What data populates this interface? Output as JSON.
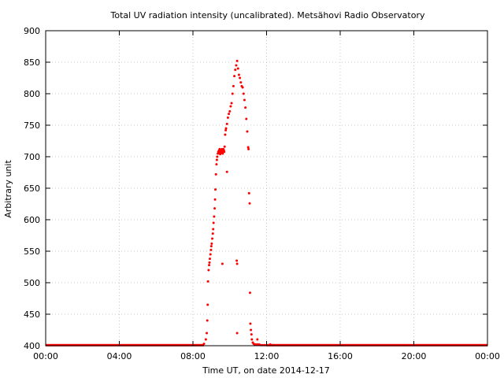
{
  "chart_data": {
    "type": "scatter",
    "title": "Total UV radiation intensity (uncalibrated). Metsähovi Radio Observatory",
    "xlabel": "Time UT, on date 2014-12-17",
    "ylabel": "Arbitrary unit",
    "xlim": [
      0,
      24
    ],
    "ylim": [
      400,
      900
    ],
    "x_ticks": [
      {
        "value": 0,
        "label": "00:00"
      },
      {
        "value": 4,
        "label": "04:00"
      },
      {
        "value": 8,
        "label": "08:00"
      },
      {
        "value": 12,
        "label": "12:00"
      },
      {
        "value": 16,
        "label": "16:00"
      },
      {
        "value": 20,
        "label": "20:00"
      },
      {
        "value": 24,
        "label": "00:00"
      }
    ],
    "y_ticks": [
      {
        "value": 400,
        "label": "400"
      },
      {
        "value": 450,
        "label": "450"
      },
      {
        "value": 500,
        "label": "500"
      },
      {
        "value": 550,
        "label": "550"
      },
      {
        "value": 600,
        "label": "600"
      },
      {
        "value": 650,
        "label": "650"
      },
      {
        "value": 700,
        "label": "700"
      },
      {
        "value": 750,
        "label": "750"
      },
      {
        "value": 800,
        "label": "800"
      },
      {
        "value": 850,
        "label": "850"
      },
      {
        "value": 900,
        "label": "900"
      }
    ],
    "grid": true,
    "point_color": "#ff0000",
    "series": [
      {
        "x": [
          8.7,
          8.75,
          8.78,
          8.8,
          8.82,
          8.85,
          8.88,
          8.9,
          8.92,
          8.95,
          8.98,
          9.0,
          9.02,
          9.05,
          9.08,
          9.1,
          9.12,
          9.15,
          9.18,
          9.2,
          9.22,
          9.25,
          9.28,
          9.3,
          9.32,
          9.35,
          9.38,
          9.4,
          9.42,
          9.45,
          9.48,
          9.5,
          9.52,
          9.55,
          9.58,
          9.6,
          9.62,
          9.65,
          9.68,
          9.7,
          9.72,
          9.75,
          9.78,
          9.8,
          9.85,
          9.9,
          9.95,
          10.0,
          10.05,
          10.1,
          10.15,
          10.2,
          10.25,
          10.3,
          10.35,
          10.4,
          10.45,
          10.5,
          10.55,
          10.6,
          10.65,
          10.7,
          10.75,
          10.8,
          10.85,
          10.9,
          10.95,
          11.0,
          11.02,
          11.05,
          11.08,
          11.1,
          11.12,
          11.15,
          11.18,
          11.2,
          11.25,
          11.3,
          11.35,
          11.4,
          11.5,
          11.6,
          11.7,
          11.8,
          11.9,
          12.0,
          9.6,
          10.38,
          10.4,
          10.4,
          9.85,
          11.5,
          12.2,
          8.6
        ],
        "y": [
          410,
          420,
          440,
          465,
          502,
          520,
          528,
          532,
          538,
          545,
          552,
          558,
          562,
          570,
          578,
          585,
          595,
          605,
          618,
          632,
          648,
          672,
          688,
          695,
          700,
          705,
          708,
          706,
          710,
          712,
          704,
          708,
          706,
          710,
          712,
          708,
          705,
          712,
          710,
          708,
          716,
          735,
          742,
          745,
          752,
          762,
          768,
          772,
          780,
          785,
          800,
          812,
          828,
          838,
          845,
          852,
          840,
          830,
          825,
          818,
          812,
          810,
          800,
          790,
          778,
          760,
          740,
          715,
          712,
          642,
          626,
          484,
          435,
          425,
          418,
          410,
          405,
          403,
          402,
          402,
          402,
          402,
          401,
          401,
          401,
          401,
          530,
          535,
          530,
          420,
          676,
          410,
          402,
          403
        ]
      }
    ]
  }
}
